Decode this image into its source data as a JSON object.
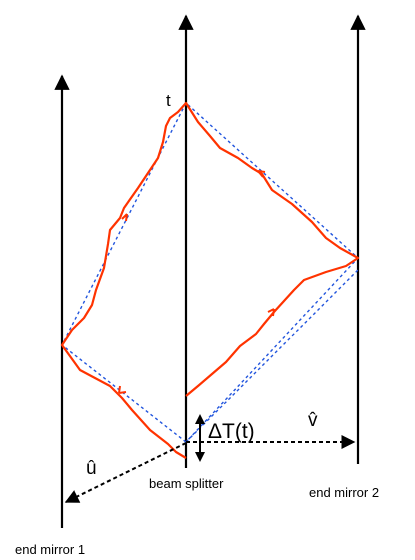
{
  "labels": {
    "time": "t",
    "delta_t": "ΔT(t)",
    "u_hat": "û",
    "v_hat": "v̂",
    "beam_splitter": "beam splitter",
    "end_mirror_1": "end mirror 1",
    "end_mirror_2": "end mirror 2"
  },
  "colors": {
    "worldlines": "#000000",
    "light_path": "#ff3300",
    "ideal_path": "#2255dd",
    "background": "#ffffff"
  }
}
